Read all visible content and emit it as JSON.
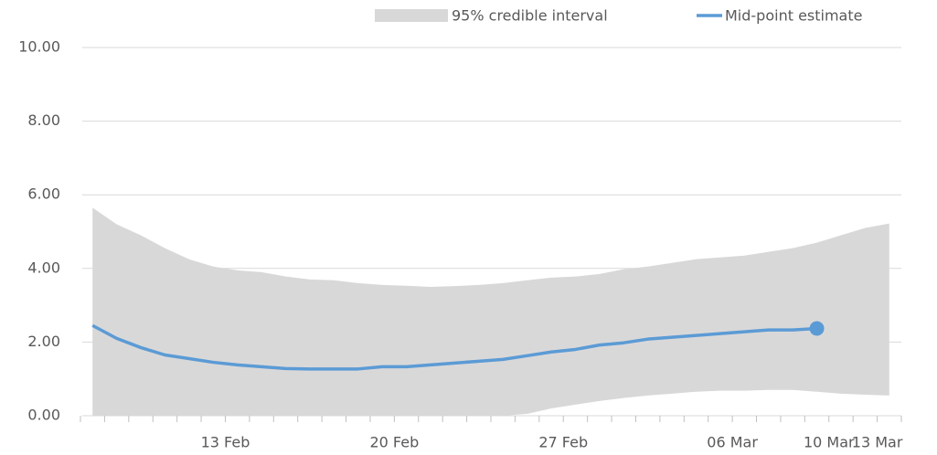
{
  "chart_data": {
    "type": "line",
    "categories": [
      null,
      null,
      null,
      null,
      null,
      null,
      "13 Feb",
      null,
      null,
      null,
      null,
      null,
      null,
      "20 Feb",
      null,
      null,
      null,
      null,
      null,
      null,
      "27 Feb",
      null,
      null,
      null,
      null,
      null,
      null,
      "06 Mar",
      null,
      null,
      null,
      "10 Mar",
      null,
      "13 Mar"
    ],
    "series": [
      {
        "name": "95% credible interval",
        "color": "#d9d8d9",
        "upper": [
          5.65,
          5.2,
          4.9,
          4.55,
          4.25,
          4.05,
          3.95,
          3.9,
          3.78,
          3.7,
          3.68,
          3.6,
          3.55,
          3.53,
          3.5,
          3.52,
          3.55,
          3.6,
          3.68,
          3.75,
          3.78,
          3.85,
          3.98,
          4.05,
          4.15,
          4.25,
          4.3,
          4.35,
          4.45,
          4.55,
          4.7,
          4.9,
          5.1,
          5.22
        ],
        "lower": [
          0,
          0,
          0,
          0,
          0,
          0,
          0,
          0,
          0,
          0,
          0,
          0,
          0,
          0,
          0,
          0,
          0,
          0,
          0.05,
          0.2,
          0.3,
          0.4,
          0.48,
          0.55,
          0.6,
          0.65,
          0.68,
          0.68,
          0.7,
          0.7,
          0.65,
          0.6,
          0.57,
          0.55
        ]
      },
      {
        "name": "Mid-point estimate",
        "color": "#5b9bd5",
        "values": [
          2.45,
          2.1,
          1.85,
          1.65,
          1.55,
          1.45,
          1.38,
          1.33,
          1.28,
          1.27,
          1.27,
          1.27,
          1.33,
          1.33,
          1.38,
          1.43,
          1.48,
          1.53,
          1.63,
          1.73,
          1.8,
          1.92,
          1.98,
          2.08,
          2.13,
          2.18,
          2.23,
          2.28,
          2.33,
          2.33,
          2.37,
          null,
          null,
          null
        ]
      }
    ],
    "ylim": [
      0,
      10
    ],
    "yticks": [
      {
        "value": 0,
        "label": "0.00"
      },
      {
        "value": 2,
        "label": "2.00"
      },
      {
        "value": 4,
        "label": "4.00"
      },
      {
        "value": 6,
        "label": "6.00"
      },
      {
        "value": 8,
        "label": "8.00"
      },
      {
        "value": 10,
        "label": "10.00"
      }
    ],
    "grid": true
  }
}
